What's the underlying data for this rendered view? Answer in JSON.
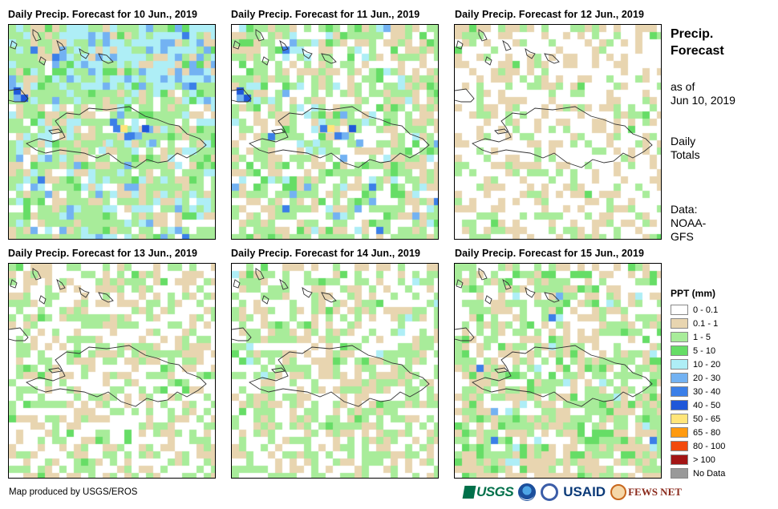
{
  "panels": [
    {
      "title": "Daily Precip. Forecast for 10 Jun., 2019",
      "date": "10 Jun., 2019"
    },
    {
      "title": "Daily Precip. Forecast for 11 Jun., 2019",
      "date": "11 Jun., 2019"
    },
    {
      "title": "Daily Precip. Forecast for 12 Jun., 2019",
      "date": "12 Jun., 2019"
    },
    {
      "title": "Daily Precip. Forecast for 13 Jun., 2019",
      "date": "13 Jun., 2019"
    },
    {
      "title": "Daily Precip. Forecast for 14 Jun., 2019",
      "date": "14 Jun., 2019"
    },
    {
      "title": "Daily Precip. Forecast for 15 Jun., 2019",
      "date": "15 Jun., 2019"
    }
  ],
  "side": {
    "title_line1": "Precip.",
    "title_line2": "Forecast",
    "asof_line1": "as of",
    "asof_line2": "Jun 10, 2019",
    "totals_line1": "Daily",
    "totals_line2": "Totals",
    "data_line1": "Data:",
    "data_line2": "NOAA-",
    "data_line3": "GFS"
  },
  "legend": {
    "title": "PPT (mm)",
    "items": [
      {
        "label": "0 - 0.1",
        "color": "#ffffff"
      },
      {
        "label": "0.1 - 1",
        "color": "#e8d5b0"
      },
      {
        "label": "1 - 5",
        "color": "#a8ec9a"
      },
      {
        "label": "5 - 10",
        "color": "#66dd66"
      },
      {
        "label": "10 - 20",
        "color": "#aeeef6"
      },
      {
        "label": "20 - 30",
        "color": "#73b2f2"
      },
      {
        "label": "30 - 40",
        "color": "#3b7fe8"
      },
      {
        "label": "40 - 50",
        "color": "#1f57d9"
      },
      {
        "label": "50 - 65",
        "color": "#ffe57a"
      },
      {
        "label": "65 - 80",
        "color": "#ff9a10"
      },
      {
        "label": "80 - 100",
        "color": "#f24a0d"
      },
      {
        "label": "> 100",
        "color": "#a31515"
      },
      {
        "label": "No Data",
        "color": "#999999"
      }
    ]
  },
  "footer": {
    "credit": "Map produced by USGS/EROS"
  },
  "logos": {
    "usgs": "USGS",
    "usaid": "USAID",
    "fews": "FEWS NET"
  }
}
